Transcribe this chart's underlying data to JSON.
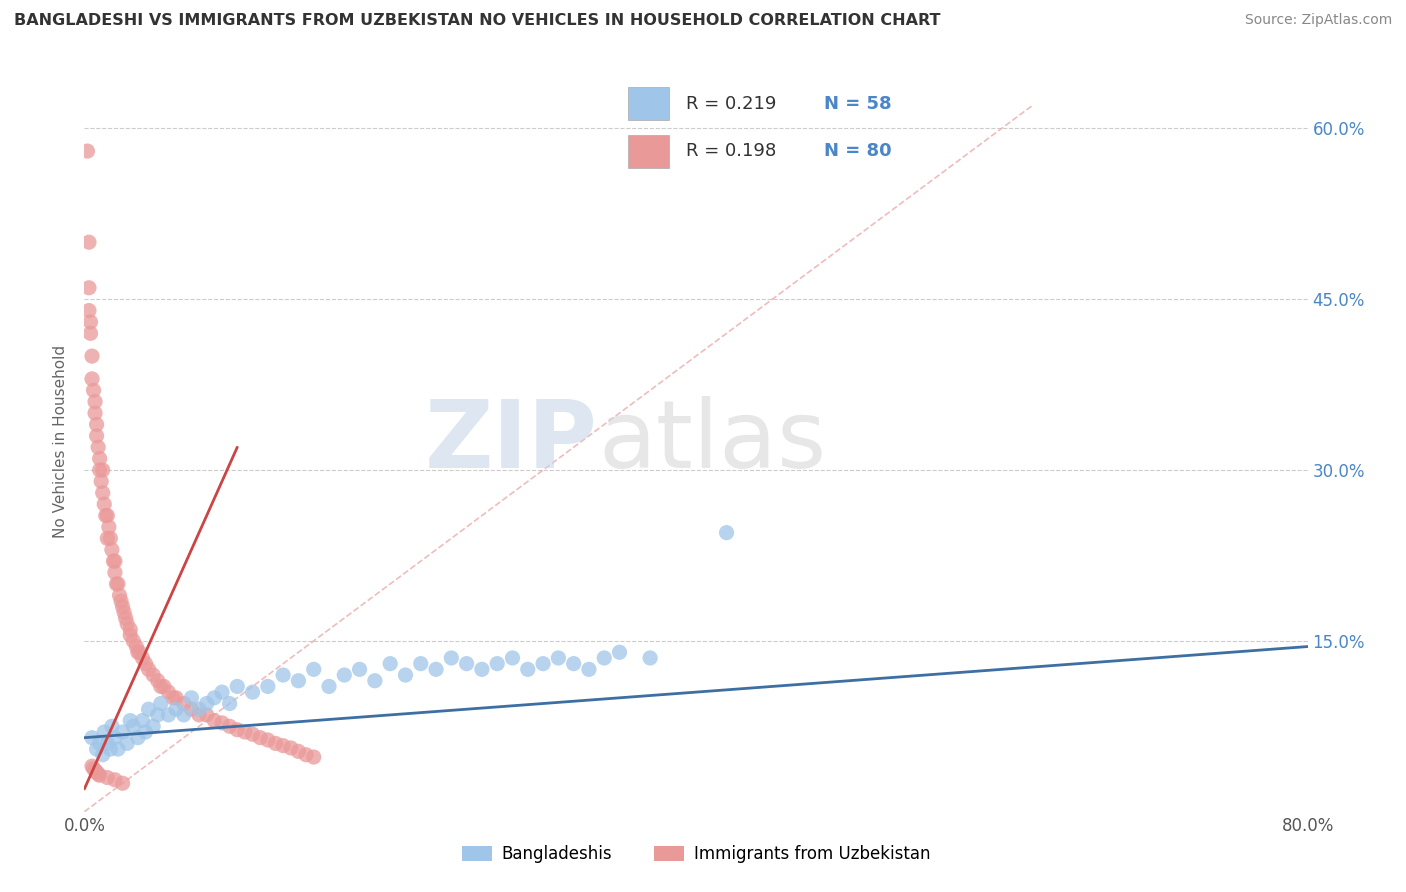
{
  "title": "BANGLADESHI VS IMMIGRANTS FROM UZBEKISTAN NO VEHICLES IN HOUSEHOLD CORRELATION CHART",
  "source": "Source: ZipAtlas.com",
  "ylabel": "No Vehicles in Household",
  "xlim": [
    0.0,
    0.8
  ],
  "ylim": [
    -0.02,
    0.65
  ],
  "plot_ylim": [
    0.0,
    0.65
  ],
  "legend_blue_r": "R = 0.219",
  "legend_blue_n": "N = 58",
  "legend_pink_r": "R = 0.198",
  "legend_pink_n": "N = 80",
  "blue_color": "#9fc5e8",
  "pink_color": "#ea9999",
  "blue_line_color": "#3d6fa3",
  "pink_line_color": "#cc4444",
  "diag_line_color": "#e8a0a0",
  "legend_label_blue": "Bangladeshis",
  "legend_label_pink": "Immigrants from Uzbekistan",
  "watermark_zip": "ZIP",
  "watermark_atlas": "atlas",
  "blue_scatter_x": [
    0.005,
    0.008,
    0.01,
    0.012,
    0.013,
    0.015,
    0.017,
    0.018,
    0.02,
    0.022,
    0.025,
    0.028,
    0.03,
    0.032,
    0.035,
    0.038,
    0.04,
    0.042,
    0.045,
    0.048,
    0.05,
    0.055,
    0.06,
    0.065,
    0.07,
    0.075,
    0.08,
    0.085,
    0.09,
    0.095,
    0.1,
    0.11,
    0.12,
    0.13,
    0.14,
    0.15,
    0.16,
    0.17,
    0.18,
    0.19,
    0.2,
    0.21,
    0.22,
    0.23,
    0.24,
    0.25,
    0.26,
    0.27,
    0.28,
    0.29,
    0.3,
    0.31,
    0.32,
    0.33,
    0.34,
    0.35,
    0.37,
    0.42
  ],
  "blue_scatter_y": [
    0.065,
    0.055,
    0.06,
    0.05,
    0.07,
    0.06,
    0.055,
    0.075,
    0.065,
    0.055,
    0.07,
    0.06,
    0.08,
    0.075,
    0.065,
    0.08,
    0.07,
    0.09,
    0.075,
    0.085,
    0.095,
    0.085,
    0.09,
    0.085,
    0.1,
    0.09,
    0.095,
    0.1,
    0.105,
    0.095,
    0.11,
    0.105,
    0.11,
    0.12,
    0.115,
    0.125,
    0.11,
    0.12,
    0.125,
    0.115,
    0.13,
    0.12,
    0.13,
    0.125,
    0.135,
    0.13,
    0.125,
    0.13,
    0.135,
    0.125,
    0.13,
    0.135,
    0.13,
    0.125,
    0.135,
    0.14,
    0.135,
    0.245
  ],
  "pink_scatter_x": [
    0.002,
    0.003,
    0.003,
    0.004,
    0.005,
    0.005,
    0.006,
    0.007,
    0.007,
    0.008,
    0.008,
    0.009,
    0.01,
    0.01,
    0.011,
    0.012,
    0.012,
    0.013,
    0.014,
    0.015,
    0.015,
    0.016,
    0.017,
    0.018,
    0.019,
    0.02,
    0.02,
    0.021,
    0.022,
    0.023,
    0.024,
    0.025,
    0.026,
    0.027,
    0.028,
    0.03,
    0.03,
    0.032,
    0.034,
    0.035,
    0.036,
    0.038,
    0.04,
    0.042,
    0.045,
    0.048,
    0.05,
    0.052,
    0.055,
    0.058,
    0.06,
    0.065,
    0.07,
    0.075,
    0.08,
    0.085,
    0.09,
    0.095,
    0.1,
    0.105,
    0.11,
    0.115,
    0.12,
    0.125,
    0.13,
    0.135,
    0.14,
    0.145,
    0.15,
    0.003,
    0.004,
    0.005,
    0.006,
    0.007,
    0.008,
    0.009,
    0.01,
    0.015,
    0.02,
    0.025
  ],
  "pink_scatter_y": [
    0.58,
    0.5,
    0.46,
    0.43,
    0.4,
    0.38,
    0.37,
    0.35,
    0.36,
    0.33,
    0.34,
    0.32,
    0.31,
    0.3,
    0.29,
    0.28,
    0.3,
    0.27,
    0.26,
    0.26,
    0.24,
    0.25,
    0.24,
    0.23,
    0.22,
    0.22,
    0.21,
    0.2,
    0.2,
    0.19,
    0.185,
    0.18,
    0.175,
    0.17,
    0.165,
    0.16,
    0.155,
    0.15,
    0.145,
    0.14,
    0.14,
    0.135,
    0.13,
    0.125,
    0.12,
    0.115,
    0.11,
    0.11,
    0.105,
    0.1,
    0.1,
    0.095,
    0.09,
    0.085,
    0.085,
    0.08,
    0.078,
    0.075,
    0.072,
    0.07,
    0.068,
    0.065,
    0.063,
    0.06,
    0.058,
    0.056,
    0.053,
    0.05,
    0.048,
    0.44,
    0.42,
    0.04,
    0.038,
    0.036,
    0.035,
    0.033,
    0.032,
    0.03,
    0.028,
    0.025
  ]
}
